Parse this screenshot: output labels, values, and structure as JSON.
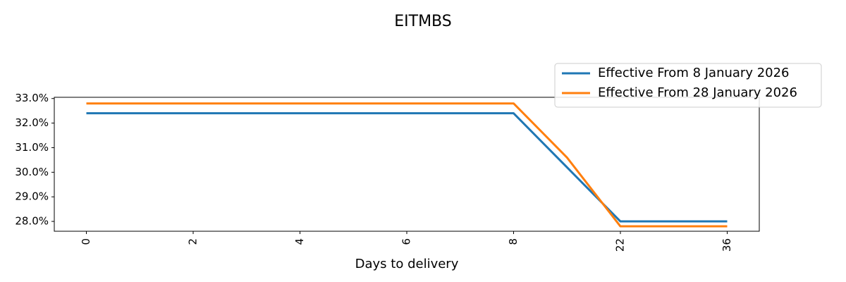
{
  "chart_data": {
    "type": "line",
    "title": "EITMBS",
    "x_label": "Days to delivery",
    "categories": [
      "0",
      null,
      "2",
      null,
      "4",
      null,
      "6",
      null,
      "8",
      null,
      "22",
      null,
      "36"
    ],
    "series": [
      {
        "name": "Effective From 8 January 2026",
        "color": "#1f77b4",
        "values": [
          32.4,
          32.4,
          32.4,
          32.4,
          32.4,
          32.4,
          32.4,
          32.4,
          32.4,
          30.2,
          28.0,
          28.0,
          28.0
        ]
      },
      {
        "name": "Effective From 28 January 2026",
        "color": "#ff7f0e",
        "values": [
          32.8,
          32.8,
          32.8,
          32.8,
          32.8,
          32.8,
          32.8,
          32.8,
          32.8,
          30.6,
          27.8,
          27.8,
          27.8
        ]
      }
    ],
    "ylim": [
      27.6,
      33.05
    ],
    "yticks": [
      {
        "value": 28,
        "label": "28.0%"
      },
      {
        "value": 29,
        "label": "29.0%"
      },
      {
        "value": 30,
        "label": "30.0%"
      },
      {
        "value": 31,
        "label": "31.0%"
      },
      {
        "value": 32,
        "label": "32.0%"
      },
      {
        "value": 33,
        "label": "33.0%"
      }
    ],
    "legend": "upper right"
  }
}
